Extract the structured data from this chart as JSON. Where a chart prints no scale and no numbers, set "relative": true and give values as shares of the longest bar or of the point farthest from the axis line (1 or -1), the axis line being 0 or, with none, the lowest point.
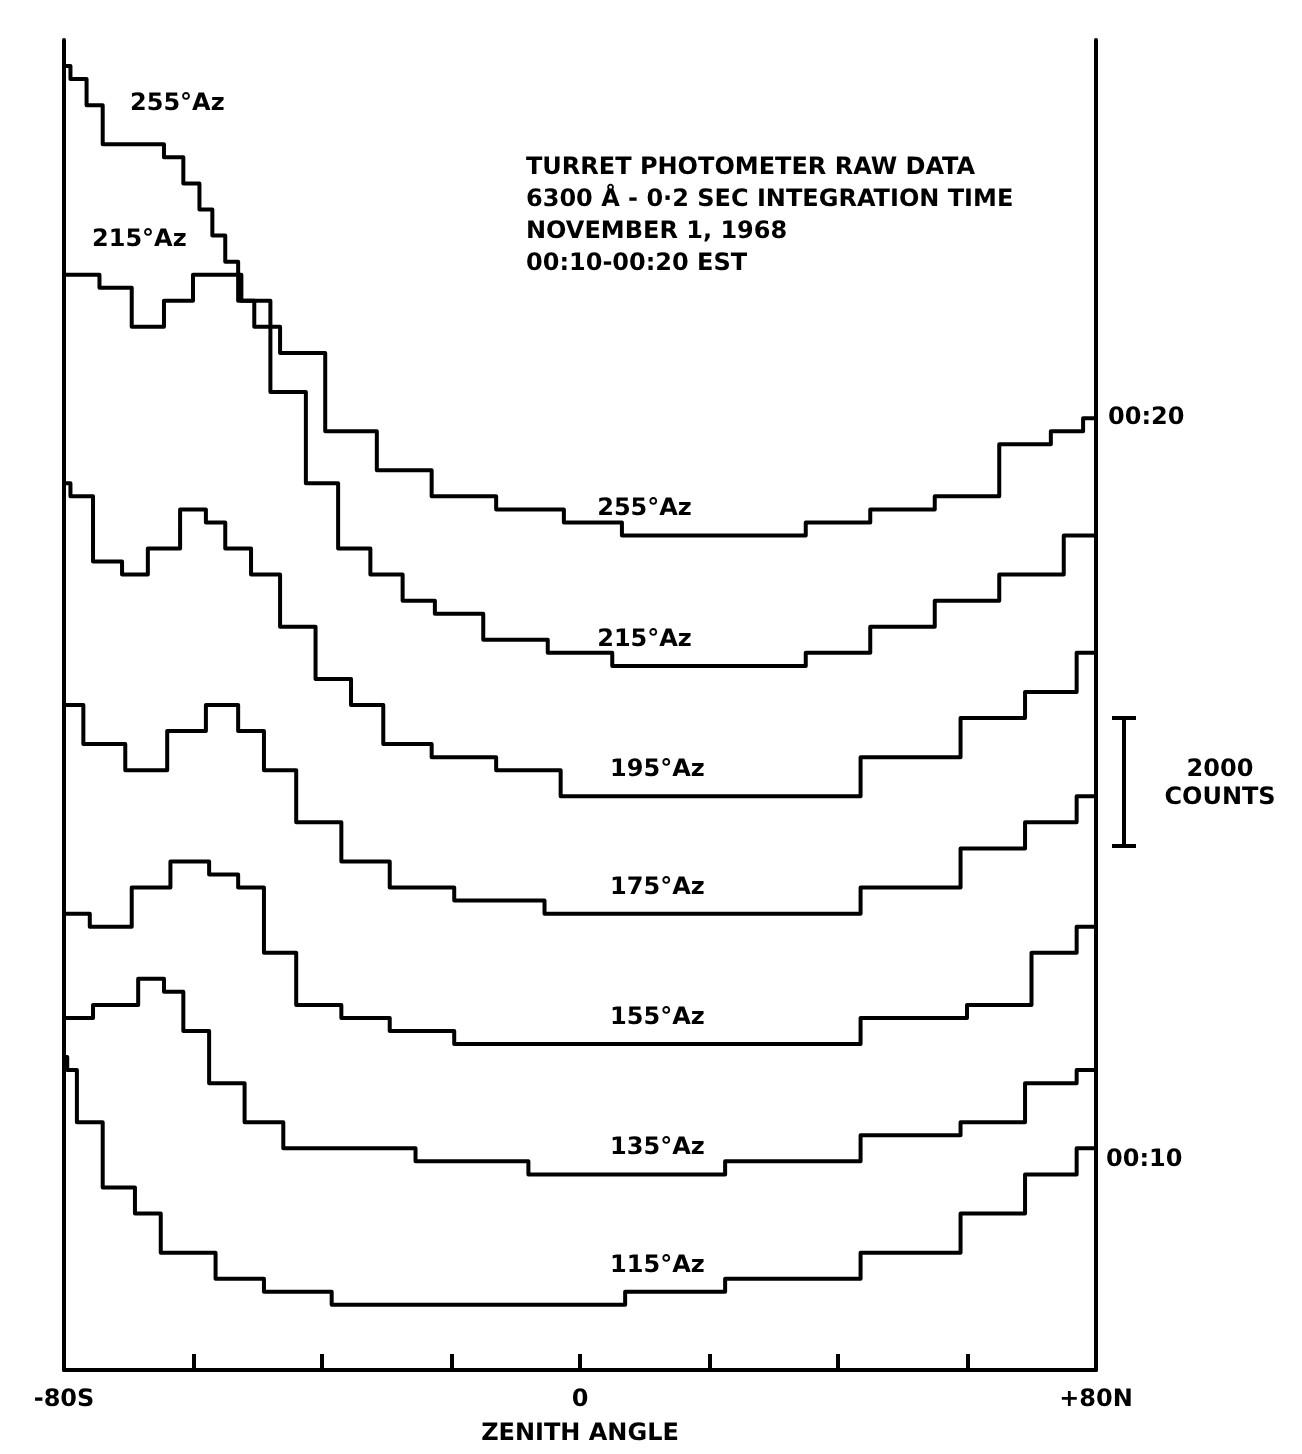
{
  "chart_data": {
    "type": "step",
    "title": "TURRET PHOTOMETER RAW DATA",
    "subtitle": "6300 Å - 0·2 SEC INTEGRATION TIME\nNOVEMBER 1, 1968\n00:10-00:20 EST",
    "xlabel": "ZENITH ANGLE",
    "relative": true,
    "xlim": [
      -80,
      80
    ],
    "xticks": [
      {
        "value": -80,
        "label": "-80S"
      },
      {
        "value": -60,
        "label": null
      },
      {
        "value": -40,
        "label": null
      },
      {
        "value": -20,
        "label": null
      },
      {
        "value": 0,
        "label": "0"
      },
      {
        "value": 20,
        "label": null
      },
      {
        "value": 40,
        "label": null
      },
      {
        "value": 60,
        "label": null
      },
      {
        "value": 80,
        "label": "+80N"
      }
    ],
    "grid": false,
    "legend": false,
    "marker": "none",
    "line_style": "solid",
    "series": [
      {
        "name": "255°Az",
        "color": "#000000",
        "x": [
          -80,
          -78,
          -75,
          -73,
          -66,
          -63,
          -60,
          -58,
          -56,
          -54,
          -52,
          -49,
          -44,
          -35,
          -28,
          -18,
          -8,
          3,
          10,
          20,
          30,
          40,
          50,
          60,
          70,
          76,
          80
        ],
        "values": [
          1.0,
          0.99,
          0.97,
          0.94,
          0.94,
          0.93,
          0.91,
          0.89,
          0.87,
          0.85,
          0.82,
          0.8,
          0.78,
          0.72,
          0.69,
          0.67,
          0.66,
          0.65,
          0.64,
          0.64,
          0.64,
          0.65,
          0.66,
          0.67,
          0.71,
          0.72,
          0.73
        ]
      },
      {
        "name": "215°Az",
        "color": "#000000",
        "x": [
          -80,
          -77,
          -72,
          -67,
          -62,
          -58,
          -54,
          -51,
          -45,
          -40,
          -35,
          -30,
          -25,
          -20,
          -10,
          0,
          10,
          20,
          30,
          40,
          50,
          60,
          70,
          80
        ],
        "values": [
          0.84,
          0.84,
          0.83,
          0.8,
          0.82,
          0.84,
          0.84,
          0.82,
          0.75,
          0.68,
          0.63,
          0.61,
          0.59,
          0.58,
          0.56,
          0.55,
          0.54,
          0.54,
          0.54,
          0.55,
          0.57,
          0.59,
          0.61,
          0.64
        ]
      },
      {
        "name": "195°Az",
        "color": "#000000",
        "x": [
          -80,
          -78,
          -73,
          -69,
          -65,
          -59,
          -57,
          -53,
          -49,
          -44,
          -38,
          -33,
          -28,
          -18,
          -8,
          2,
          12,
          33,
          54,
          64,
          74,
          80
        ],
        "values": [
          0.68,
          0.67,
          0.62,
          0.61,
          0.63,
          0.66,
          0.65,
          0.63,
          0.61,
          0.57,
          0.53,
          0.51,
          0.48,
          0.47,
          0.46,
          0.44,
          0.44,
          0.44,
          0.47,
          0.5,
          0.52,
          0.55
        ]
      },
      {
        "name": "175°Az",
        "color": "#000000",
        "x": [
          -80,
          -74,
          -67,
          -61,
          -55,
          -51,
          -47,
          -41,
          -33,
          -26,
          -13,
          2,
          12,
          33,
          54,
          64,
          74,
          80
        ],
        "values": [
          0.51,
          0.48,
          0.46,
          0.49,
          0.51,
          0.49,
          0.46,
          0.42,
          0.39,
          0.37,
          0.36,
          0.35,
          0.35,
          0.35,
          0.37,
          0.4,
          0.42,
          0.44
        ]
      },
      {
        "name": "155°Az",
        "color": "#000000",
        "x": [
          -80,
          -72,
          -67,
          -60,
          -55,
          -51,
          -47,
          -41,
          -33,
          -26,
          -13,
          2,
          12,
          33,
          54,
          66,
          74,
          80
        ],
        "values": [
          0.35,
          0.34,
          0.37,
          0.39,
          0.38,
          0.37,
          0.32,
          0.28,
          0.27,
          0.26,
          0.25,
          0.25,
          0.25,
          0.25,
          0.27,
          0.28,
          0.32,
          0.34
        ]
      },
      {
        "name": "135°Az",
        "color": "#000000",
        "x": [
          -80,
          -71,
          -66,
          -63,
          -60,
          -55,
          -49,
          -43,
          -33,
          -18,
          2,
          12,
          33,
          54,
          64,
          74,
          80
        ],
        "values": [
          0.27,
          0.28,
          0.3,
          0.29,
          0.26,
          0.22,
          0.19,
          0.17,
          0.17,
          0.16,
          0.15,
          0.15,
          0.16,
          0.18,
          0.19,
          0.22,
          0.23
        ]
      },
      {
        "name": "115°Az",
        "color": "#000000",
        "x": [
          -80,
          -79,
          -77,
          -71,
          -67,
          -63,
          -59,
          -54,
          -44,
          -33,
          -13,
          2,
          12,
          33,
          54,
          64,
          74,
          80
        ],
        "values": [
          0.24,
          0.23,
          0.19,
          0.14,
          0.12,
          0.09,
          0.09,
          0.07,
          0.06,
          0.05,
          0.05,
          0.05,
          0.06,
          0.07,
          0.09,
          0.12,
          0.15,
          0.17
        ]
      }
    ],
    "annotations": [
      "255°Az",
      "215°Az",
      {
        "text": "00:20",
        "x": 80,
        "y": 0.73
      },
      "00:10",
      "2000 COUNTS"
    ]
  }
}
